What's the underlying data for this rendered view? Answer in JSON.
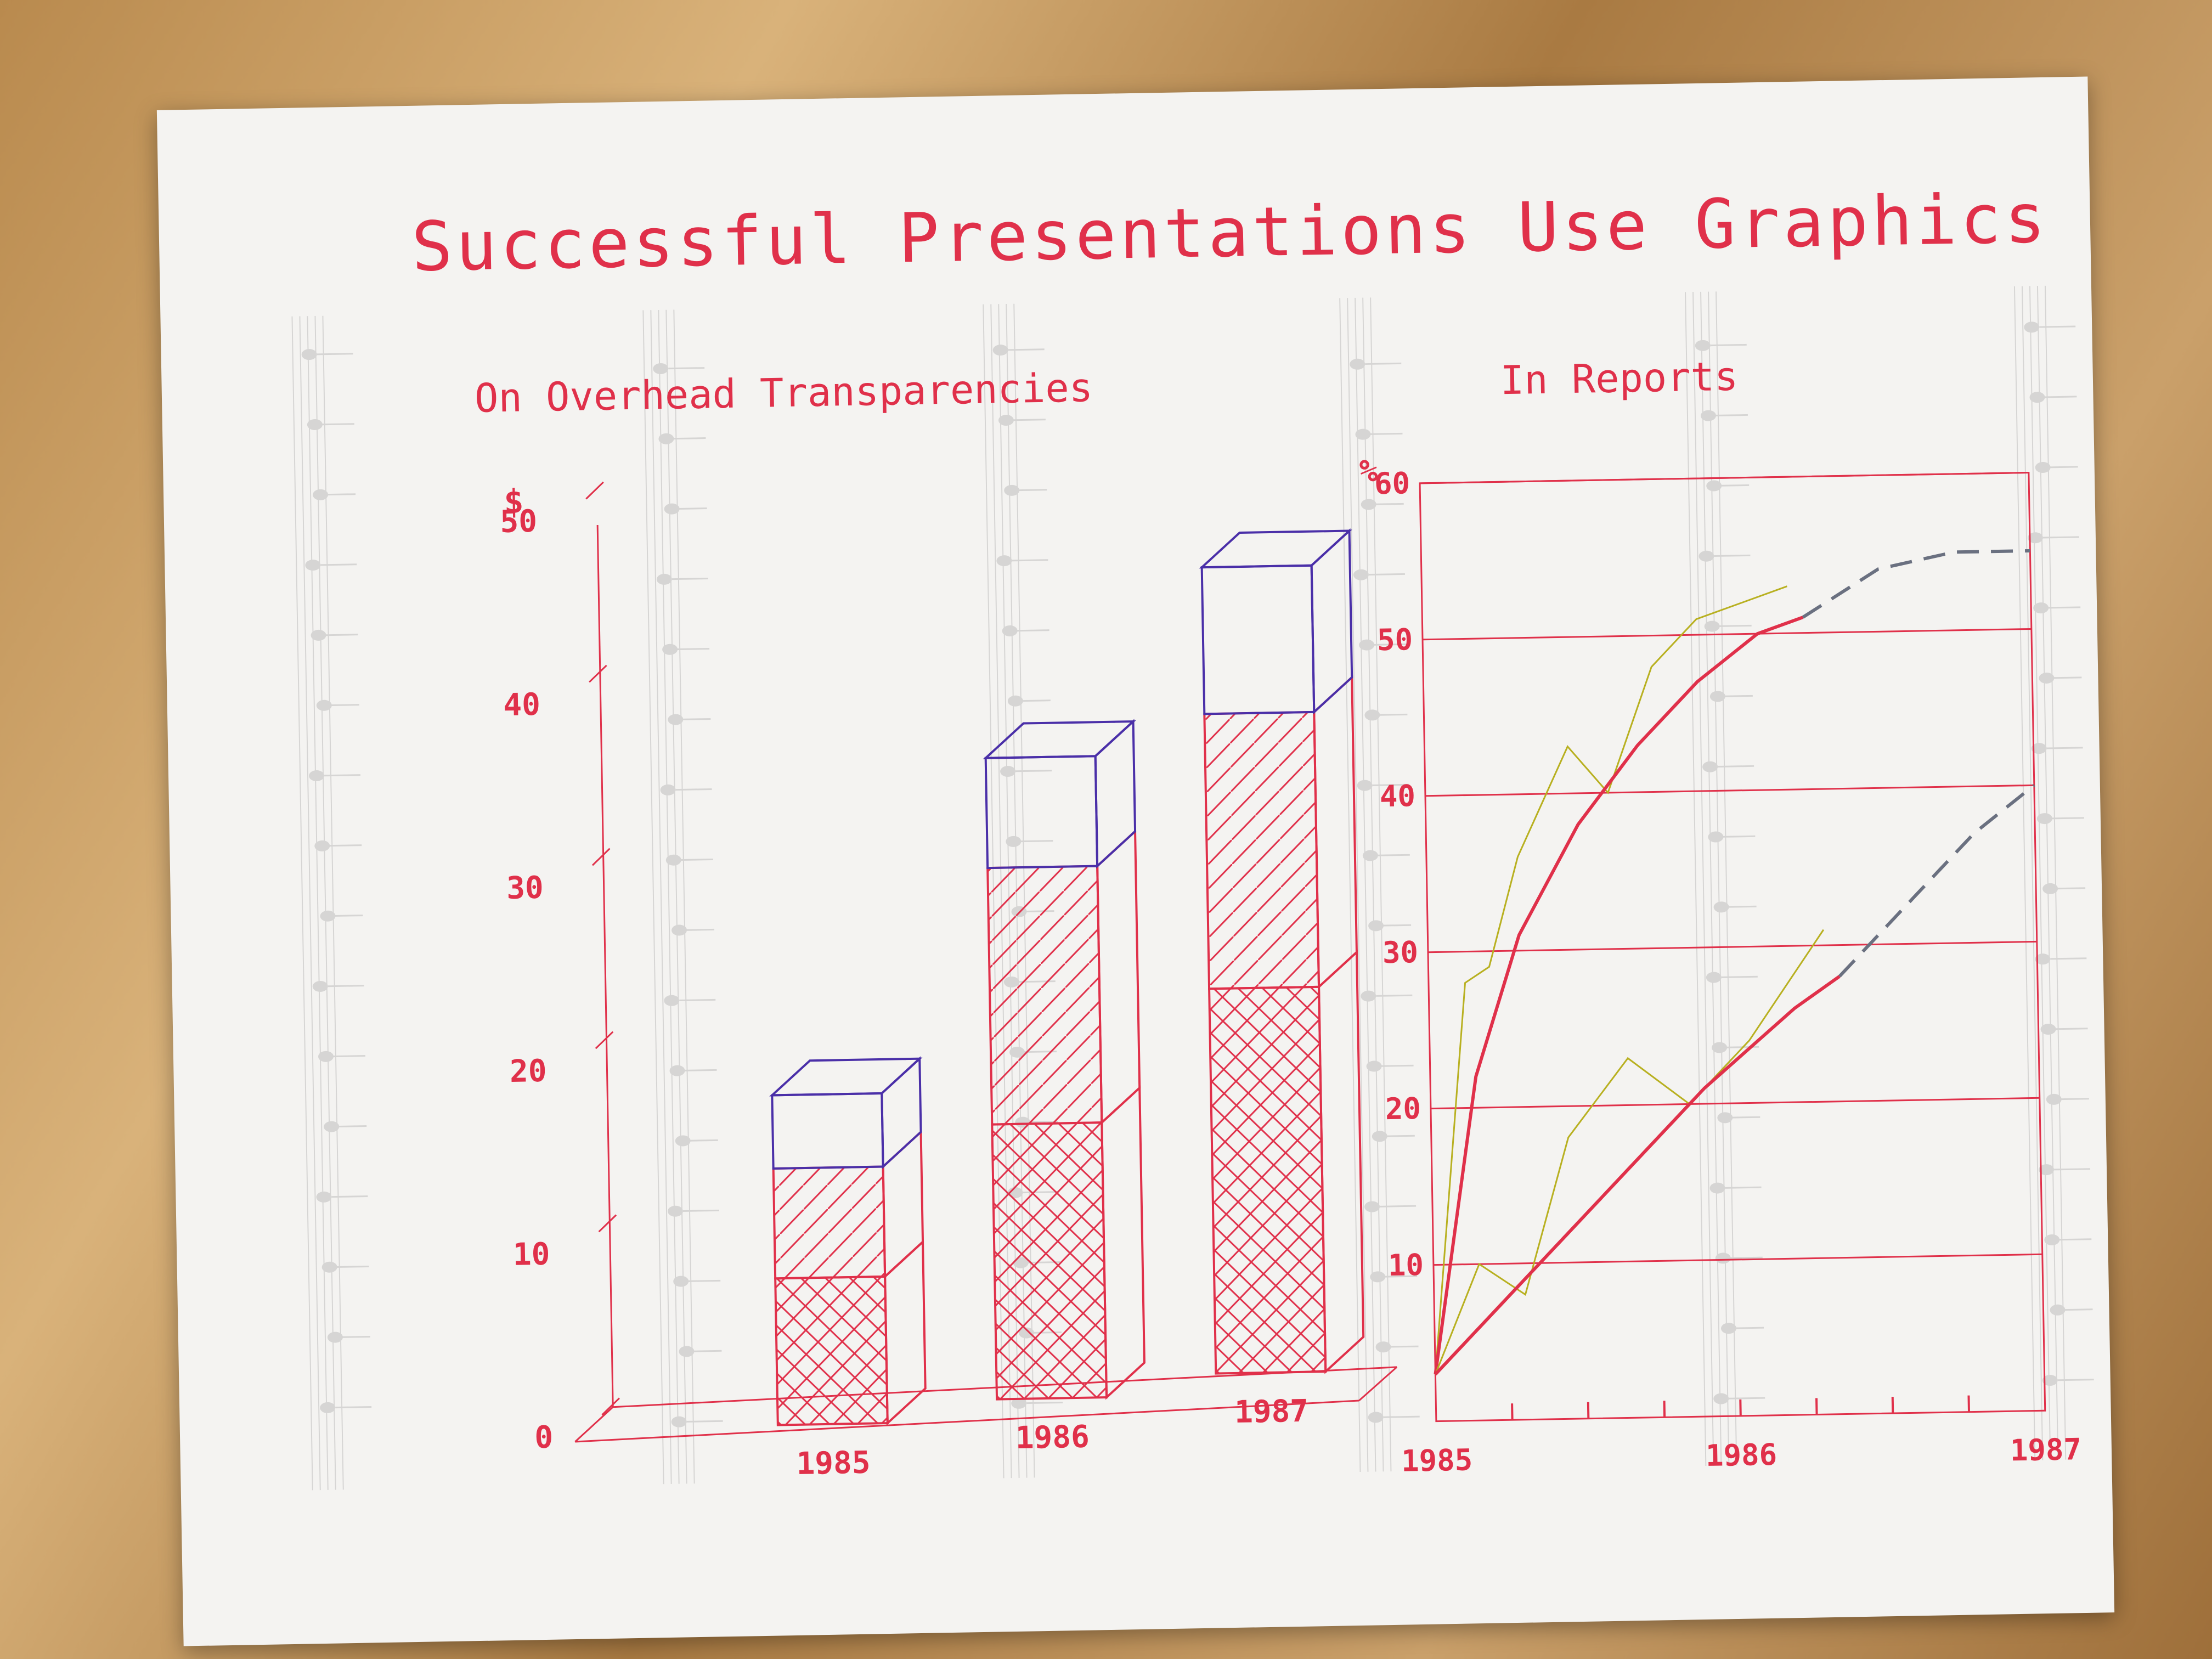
{
  "page": {
    "title": "Successful Presentations Use Graphics"
  },
  "colors": {
    "ink_red": "#e0304a",
    "ink_blue": "#4a2fa8",
    "ink_yellow": "#b8b020",
    "ink_gray": "#6a7080",
    "paper": "#f4f3f1"
  },
  "chart_data": [
    {
      "type": "bar",
      "title": "On Overhead Transparencies",
      "ylabel": "$",
      "xlabel": "",
      "stacked": true,
      "three_d": true,
      "ylim": [
        0,
        50
      ],
      "yticks": [
        "0",
        "10",
        "20",
        "30",
        "40",
        "50"
      ],
      "categories": [
        "1985",
        "1986",
        "1987"
      ],
      "series": [
        {
          "pattern": "crosshatch",
          "color": "#e0304a",
          "values": [
            8,
            15,
            21
          ]
        },
        {
          "pattern": "diagonal",
          "color": "#e0304a",
          "values": [
            6,
            14,
            15
          ]
        },
        {
          "pattern": "open-box",
          "color": "#4a2fa8",
          "values": [
            4,
            6,
            8
          ]
        }
      ]
    },
    {
      "type": "line",
      "title": "In Reports",
      "ylabel": "%",
      "xlabel": "",
      "ylim": [
        0,
        60
      ],
      "yticks": [
        "10",
        "20",
        "30",
        "40",
        "50",
        "60"
      ],
      "xticks": [
        "1985",
        "1986",
        "1987"
      ],
      "grid": true,
      "series": [
        {
          "style": "raw",
          "color": "#b8b020",
          "x": [
            1985.0,
            1985.12,
            1985.2,
            1985.3,
            1985.47,
            1985.6,
            1985.75,
            1985.9,
            1986.2
          ],
          "y": [
            3,
            28,
            29,
            36,
            43,
            40,
            48,
            51,
            53
          ]
        },
        {
          "style": "fit",
          "color": "#e0304a",
          "x": [
            1985.0,
            1985.15,
            1985.3,
            1985.5,
            1985.7,
            1985.9,
            1986.1,
            1986.25
          ],
          "y": [
            3,
            22,
            31,
            38,
            43,
            47,
            50,
            51
          ]
        },
        {
          "style": "projection",
          "color": "#6a7080",
          "x": [
            1986.25,
            1986.5,
            1986.75,
            1987.0
          ],
          "y": [
            51,
            54,
            55,
            55
          ]
        },
        {
          "style": "raw",
          "color": "#b8b020",
          "x": [
            1985.0,
            1985.15,
            1985.3,
            1985.45,
            1985.65,
            1985.85,
            1986.05,
            1986.3
          ],
          "y": [
            3,
            10,
            8,
            18,
            23,
            20,
            24,
            31
          ]
        },
        {
          "style": "fit",
          "color": "#e0304a",
          "x": [
            1985.0,
            1985.3,
            1985.6,
            1985.9,
            1986.2,
            1986.35
          ],
          "y": [
            3,
            9,
            15,
            21,
            26,
            28
          ]
        },
        {
          "style": "projection",
          "color": "#6a7080",
          "x": [
            1986.35,
            1986.6,
            1986.8,
            1987.0
          ],
          "y": [
            28,
            33,
            37,
            40
          ]
        }
      ]
    }
  ]
}
